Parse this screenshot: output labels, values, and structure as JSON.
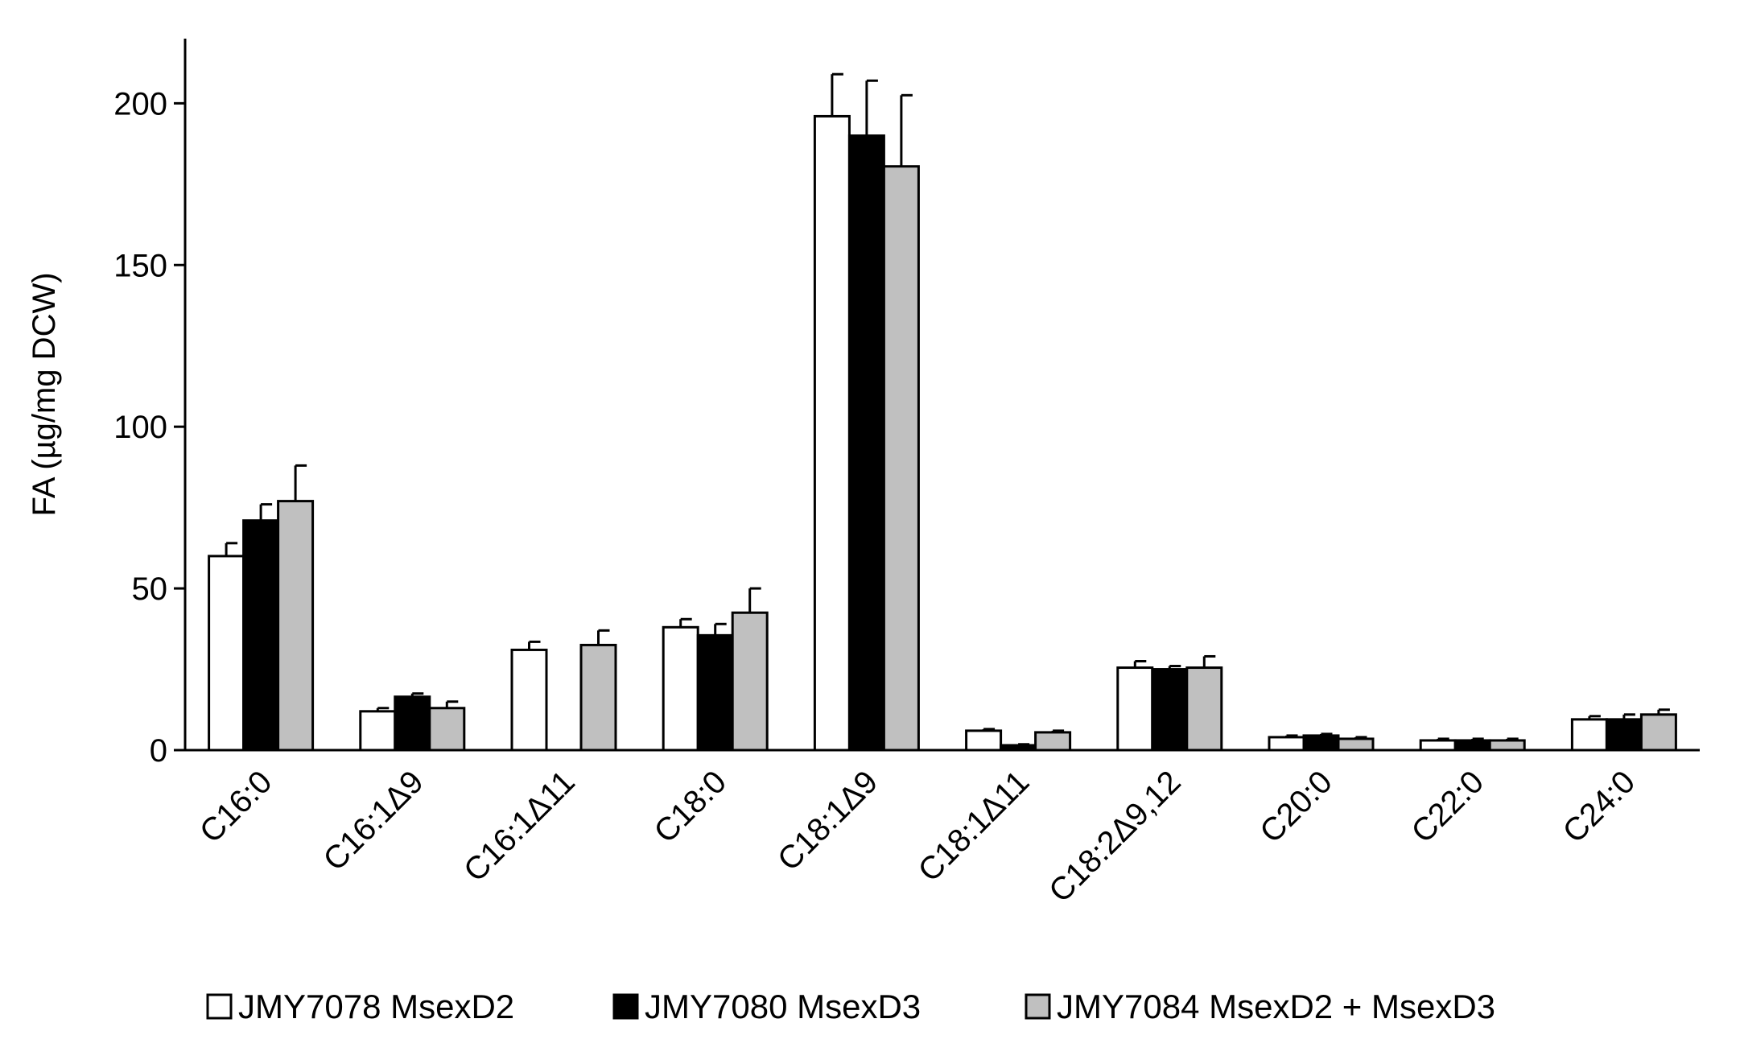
{
  "chart_data": {
    "type": "bar",
    "title": "",
    "xlabel": "",
    "ylabel": "FA (µg/mg DCW)",
    "ylim": [
      0,
      220
    ],
    "yticks": [
      0,
      50,
      100,
      150,
      200
    ],
    "grid": false,
    "legend_position": "bottom",
    "categories": [
      "C16:0",
      "C16:1Δ9",
      "C16:1Δ11",
      "C18:0",
      "C18:1Δ9",
      "C18:1Δ11",
      "C18:2Δ9,12",
      "C20:0",
      "C22:0",
      "C24:0"
    ],
    "series": [
      {
        "name": "JMY7078 MsexD2",
        "color": "#ffffff",
        "values": [
          60,
          12,
          31,
          38,
          196,
          6,
          25.5,
          4,
          3,
          9.5
        ],
        "errors": [
          4,
          1,
          2.5,
          2.5,
          13,
          0.5,
          2,
          0.5,
          0.5,
          1
        ]
      },
      {
        "name": "JMY7080 MsexD3",
        "color": "#000000",
        "values": [
          71,
          16.5,
          0,
          35.5,
          190,
          1.5,
          25,
          4.5,
          3,
          9.5
        ],
        "errors": [
          5,
          1,
          0,
          3.5,
          17,
          0.3,
          1,
          0.5,
          0.5,
          1.5
        ]
      },
      {
        "name": "JMY7084 MsexD2 + MsexD3",
        "color": "#c0c0c0",
        "values": [
          77,
          13,
          32.5,
          42.5,
          180.5,
          5.5,
          25.5,
          3.5,
          3,
          11
        ],
        "errors": [
          11,
          2,
          4.5,
          7.5,
          22,
          0.5,
          3.5,
          0.5,
          0.5,
          1.5
        ]
      }
    ]
  }
}
